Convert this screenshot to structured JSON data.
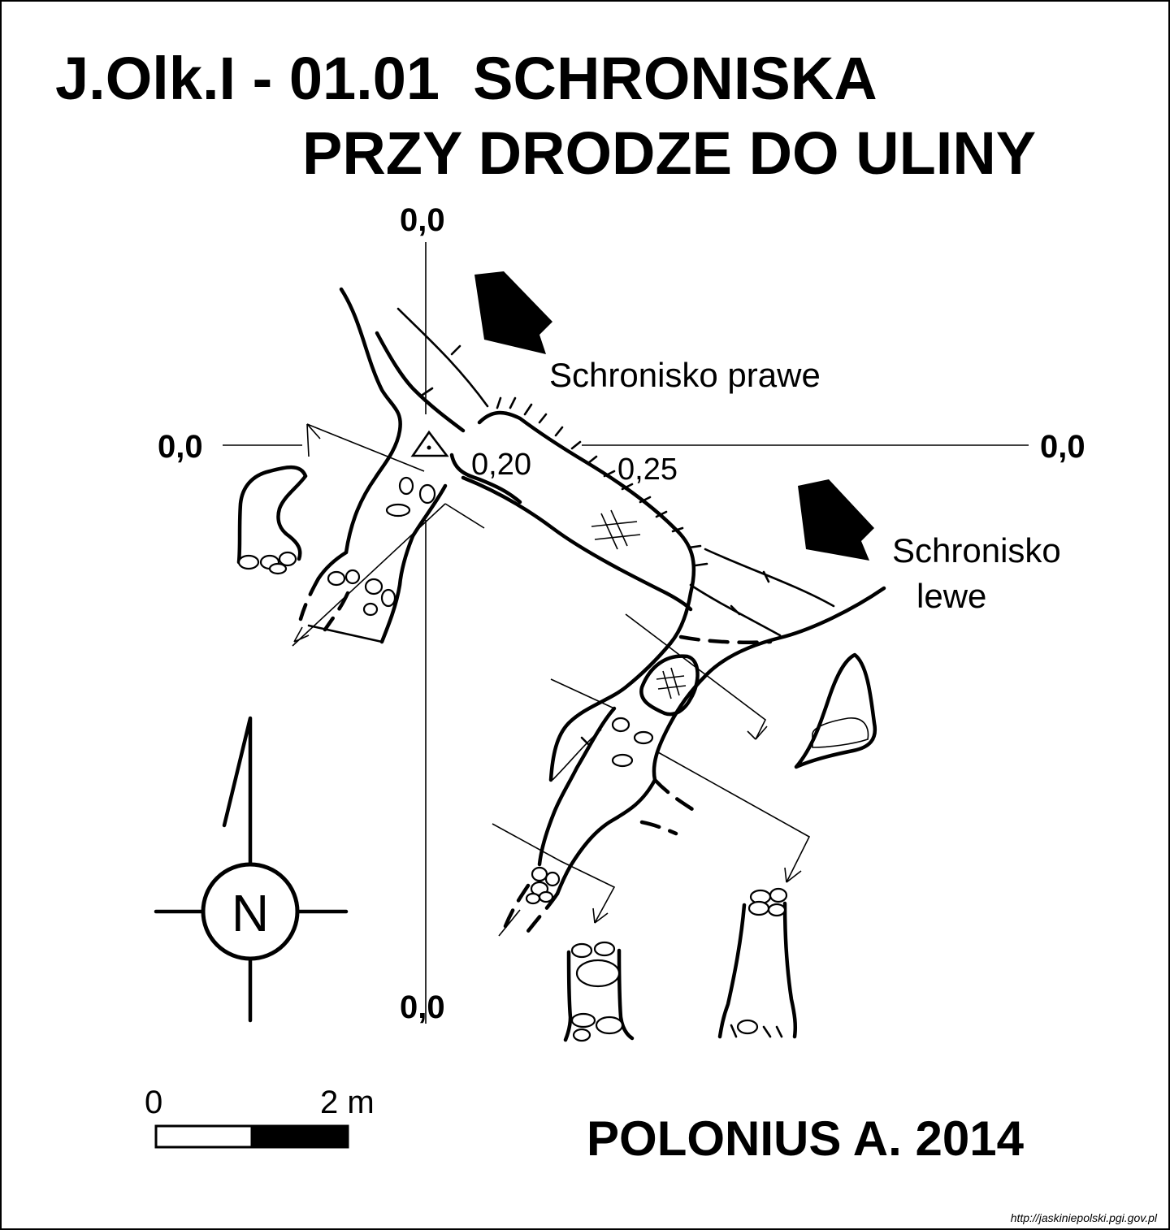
{
  "title": {
    "line1": "J.Olk.I - 01.01  SCHRONISKA",
    "line2": "PRZY DRODZE DO ULINY"
  },
  "section_markers": {
    "top": "0,0",
    "left": "0,0",
    "right": "0,0",
    "bottom": "0,0"
  },
  "depths": {
    "d1": "0,20",
    "d2": "0,25"
  },
  "labels": {
    "right_shelter": "Schronisko prawe",
    "left_shelter_line1": "Schronisko",
    "left_shelter_line2": "lewe"
  },
  "north": "N",
  "scale": {
    "start": "0",
    "end": "2 m"
  },
  "author": "POLONIUS A. 2014",
  "source_url": "http://jaskiniepolski.pgi.gov.pl"
}
